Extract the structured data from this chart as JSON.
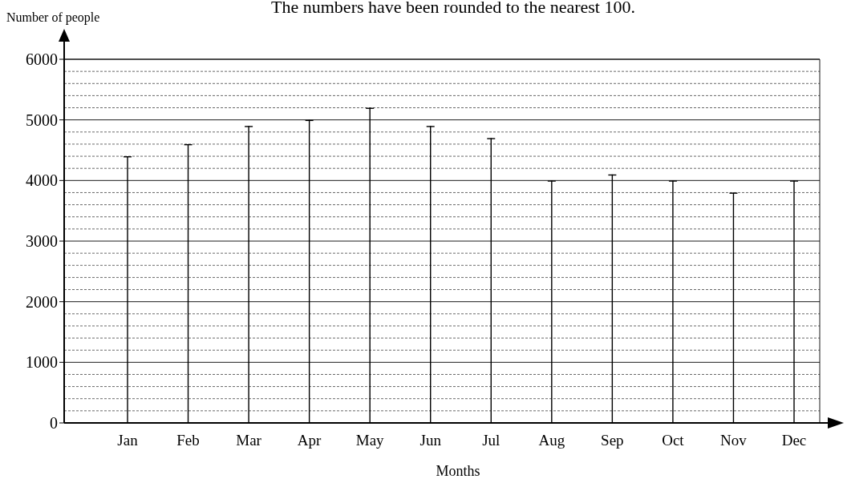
{
  "chart_data": {
    "type": "bar",
    "title": "The numbers have been rounded to the nearest 100.",
    "xlabel": "Months",
    "ylabel": "Number of people",
    "categories": [
      "Jan",
      "Feb",
      "Mar",
      "Apr",
      "May",
      "Jun",
      "Jul",
      "Aug",
      "Sep",
      "Oct",
      "Nov",
      "Dec"
    ],
    "values": [
      4400,
      4600,
      4900,
      5000,
      5200,
      4900,
      4700,
      4000,
      4100,
      4000,
      3800,
      4000
    ],
    "color": "#000000",
    "ylim": [
      0,
      6000
    ],
    "yticks": [
      0,
      1000,
      2000,
      3000,
      4000,
      5000,
      6000
    ],
    "grid": "y"
  }
}
